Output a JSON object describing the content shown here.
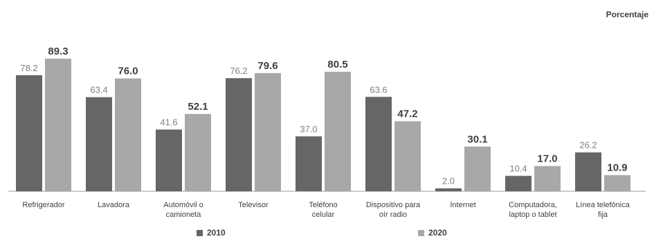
{
  "unit_label": "Porcentaje",
  "colors": {
    "2010": "#666666",
    "2020": "#a8a8a8"
  },
  "chart_data": {
    "type": "bar",
    "categories": [
      [
        "Refrigerador"
      ],
      [
        "Lavadora"
      ],
      [
        "Automóvil o",
        "camioneta"
      ],
      [
        "Televisor"
      ],
      [
        "Teléfono",
        "celular"
      ],
      [
        "Dispositivo para",
        "oír radio"
      ],
      [
        "Internet"
      ],
      [
        "Computadora,",
        "laptop o tablet"
      ],
      [
        "Línea telefónica",
        "fija"
      ]
    ],
    "series": [
      {
        "name": "2010",
        "values": [
          78.2,
          63.4,
          41.6,
          76.2,
          37.0,
          63.6,
          2.0,
          10.4,
          26.2
        ]
      },
      {
        "name": "2020",
        "values": [
          89.3,
          76.0,
          52.1,
          79.6,
          80.5,
          47.2,
          30.1,
          17.0,
          10.9
        ]
      }
    ],
    "ylim": [
      0,
      100
    ],
    "grid": false,
    "legend_position": "bottom"
  }
}
